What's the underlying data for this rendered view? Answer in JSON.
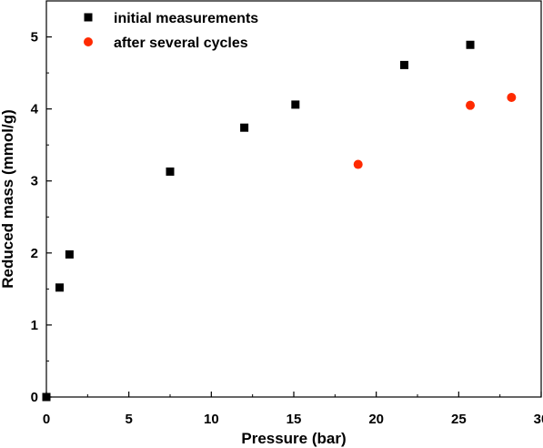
{
  "chart_data": {
    "type": "scatter",
    "title": "",
    "xlabel": "Pressure (bar)",
    "ylabel": "Reduced mass (mmol/g)",
    "xlim": [
      0,
      30
    ],
    "ylim": [
      0,
      5.5
    ],
    "xticks": [
      0,
      5,
      10,
      15,
      20,
      25,
      30
    ],
    "yticks": [
      0,
      1,
      2,
      3,
      4,
      5
    ],
    "grid": false,
    "legend_position": "top-left",
    "series": [
      {
        "name": "initial measurements",
        "marker": "square",
        "color": "#000000",
        "points": [
          {
            "x": 0.0,
            "y": 0.0
          },
          {
            "x": 0.8,
            "y": 1.52
          },
          {
            "x": 1.4,
            "y": 1.98
          },
          {
            "x": 7.5,
            "y": 3.13
          },
          {
            "x": 12.0,
            "y": 3.74
          },
          {
            "x": 15.1,
            "y": 4.06
          },
          {
            "x": 21.7,
            "y": 4.61
          },
          {
            "x": 25.7,
            "y": 4.89
          }
        ]
      },
      {
        "name": "after several cycles",
        "marker": "circle",
        "color": "#ff2a00",
        "points": [
          {
            "x": 18.9,
            "y": 3.23
          },
          {
            "x": 25.7,
            "y": 4.05
          },
          {
            "x": 28.2,
            "y": 4.16
          }
        ]
      }
    ]
  }
}
